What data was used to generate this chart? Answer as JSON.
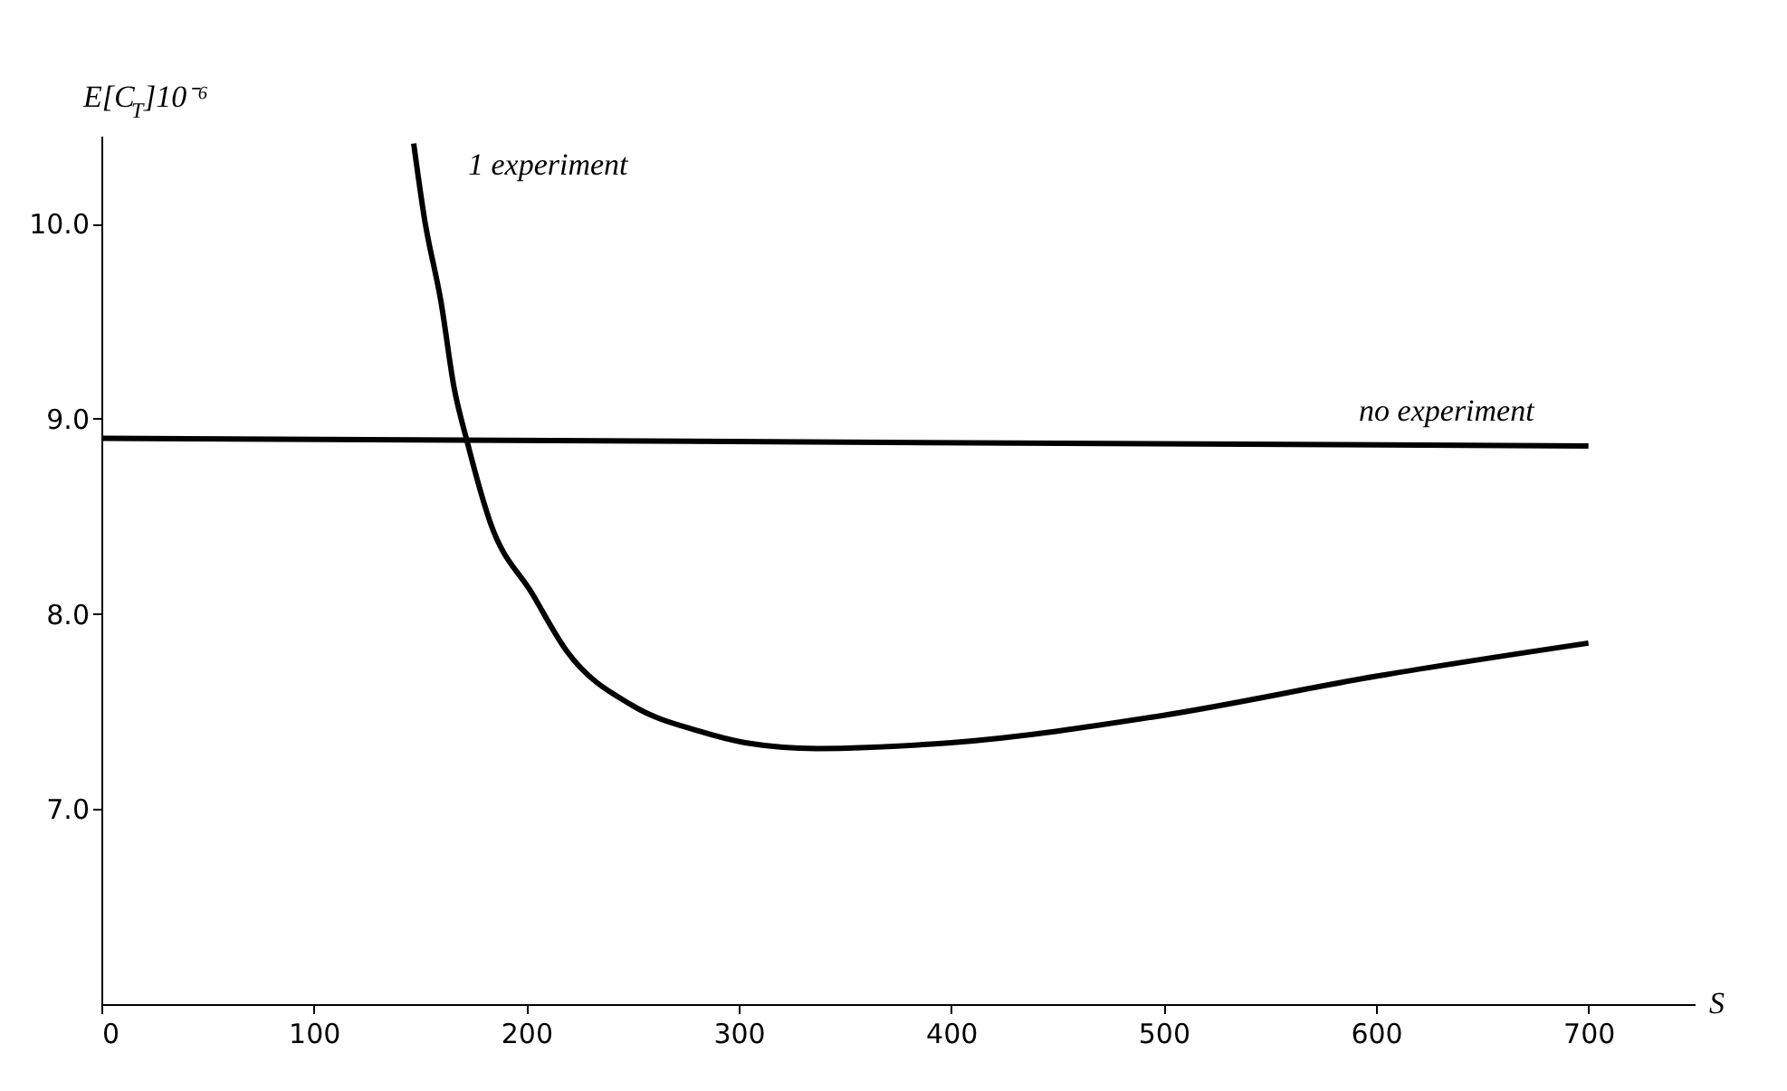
{
  "chart_data": {
    "type": "line",
    "xlabel": "S",
    "ylabel": "E[C$_{T}$]10⁻⁶",
    "xlim": [
      0,
      750
    ],
    "xticks": [
      0,
      100,
      200,
      300,
      400,
      500,
      600,
      700
    ],
    "ylim": [
      6.0,
      10.45
    ],
    "yticks": [
      {
        "value": 7.0,
        "label": "7.0"
      },
      {
        "value": 8.0,
        "label": "8.0"
      },
      {
        "value": 9.0,
        "label": "9.0"
      },
      {
        "value": 10.0,
        "label": "10.0"
      }
    ],
    "grid": false,
    "legend": false,
    "marker": "none",
    "line_style": "solid",
    "series": [
      {
        "name": "1 experiment",
        "color": "#000000",
        "x": [
          147,
          152,
          160,
          166,
          172,
          183,
          203,
          219,
          250,
          281,
          303,
          337,
          400,
          500,
          600,
          700
        ],
        "values": [
          10.41,
          10.03,
          9.59,
          9.16,
          8.89,
          8.47,
          8.1,
          7.81,
          7.53,
          7.4,
          7.34,
          7.31,
          7.34,
          7.48,
          7.68,
          7.85
        ]
      },
      {
        "name": "no experiment",
        "color": "#000000",
        "x": [
          0,
          700
        ],
        "values": [
          8.9,
          8.86
        ]
      }
    ]
  }
}
